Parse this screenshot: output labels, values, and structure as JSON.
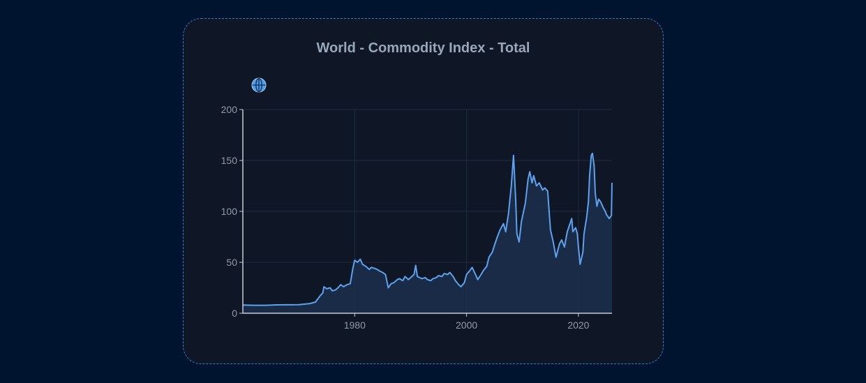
{
  "card": {
    "title": "World - Commodity Index - Total",
    "icon": "globe-icon"
  },
  "chart_data": {
    "type": "area",
    "title": "World - Commodity Index - Total",
    "xlabel": "",
    "ylabel": "",
    "xlim": [
      1960,
      2026
    ],
    "ylim": [
      0,
      200
    ],
    "x_ticks": [
      1980,
      2000,
      2020
    ],
    "y_ticks": [
      0,
      50,
      100,
      150,
      200
    ],
    "grid": true,
    "legend": "none",
    "line_color": "#5ea2ee",
    "fill_color": "#1c2f4d",
    "series": [
      {
        "points": [
          [
            1960,
            8
          ],
          [
            1962,
            7.8
          ],
          [
            1964,
            7.8
          ],
          [
            1966,
            8.2
          ],
          [
            1968,
            8.3
          ],
          [
            1970,
            8.4
          ],
          [
            1972,
            9.5
          ],
          [
            1973,
            11
          ],
          [
            1973.8,
            17
          ],
          [
            1974.3,
            20
          ],
          [
            1974.5,
            26
          ],
          [
            1975,
            24
          ],
          [
            1975.6,
            25
          ],
          [
            1976,
            22
          ],
          [
            1976.6,
            23
          ],
          [
            1977,
            25
          ],
          [
            1977.5,
            28
          ],
          [
            1978,
            26
          ],
          [
            1978.6,
            28
          ],
          [
            1979.2,
            29
          ],
          [
            1979.7,
            45
          ],
          [
            1980,
            52
          ],
          [
            1980.5,
            50
          ],
          [
            1981,
            53
          ],
          [
            1981.4,
            48
          ],
          [
            1982,
            46
          ],
          [
            1982.6,
            43
          ],
          [
            1983,
            45
          ],
          [
            1983.6,
            44
          ],
          [
            1984,
            43
          ],
          [
            1984.6,
            41
          ],
          [
            1985,
            40
          ],
          [
            1985.5,
            38
          ],
          [
            1986,
            25
          ],
          [
            1986.5,
            29
          ],
          [
            1987,
            30
          ],
          [
            1987.6,
            33
          ],
          [
            1988,
            34
          ],
          [
            1988.6,
            32
          ],
          [
            1989,
            36
          ],
          [
            1989.6,
            33
          ],
          [
            1990,
            35
          ],
          [
            1990.6,
            38
          ],
          [
            1990.9,
            47
          ],
          [
            1991.2,
            36
          ],
          [
            1992,
            34
          ],
          [
            1992.6,
            35
          ],
          [
            1993,
            33
          ],
          [
            1993.6,
            32
          ],
          [
            1994,
            34
          ],
          [
            1994.6,
            35
          ],
          [
            1995,
            37
          ],
          [
            1995.6,
            36
          ],
          [
            1996,
            39
          ],
          [
            1996.6,
            38
          ],
          [
            1997,
            40
          ],
          [
            1997.6,
            36
          ],
          [
            1998,
            32
          ],
          [
            1998.6,
            28
          ],
          [
            1999,
            26
          ],
          [
            1999.6,
            30
          ],
          [
            2000,
            38
          ],
          [
            2000.6,
            42
          ],
          [
            2001,
            45
          ],
          [
            2001.6,
            38
          ],
          [
            2002,
            33
          ],
          [
            2002.6,
            38
          ],
          [
            2003,
            42
          ],
          [
            2003.6,
            46
          ],
          [
            2004,
            55
          ],
          [
            2004.6,
            60
          ],
          [
            2005,
            67
          ],
          [
            2005.5,
            75
          ],
          [
            2006,
            82
          ],
          [
            2006.6,
            88
          ],
          [
            2007,
            80
          ],
          [
            2007.5,
            98
          ],
          [
            2008,
            125
          ],
          [
            2008.4,
            155
          ],
          [
            2008.8,
            110
          ],
          [
            2009,
            78
          ],
          [
            2009.4,
            70
          ],
          [
            2009.8,
            90
          ],
          [
            2010,
            95
          ],
          [
            2010.5,
            108
          ],
          [
            2011,
            132
          ],
          [
            2011.3,
            139
          ],
          [
            2011.7,
            128
          ],
          [
            2012,
            135
          ],
          [
            2012.5,
            125
          ],
          [
            2013,
            128
          ],
          [
            2013.6,
            121
          ],
          [
            2014,
            123
          ],
          [
            2014.5,
            120
          ],
          [
            2014.9,
            90
          ],
          [
            2015,
            82
          ],
          [
            2015.5,
            70
          ],
          [
            2016,
            55
          ],
          [
            2016.6,
            68
          ],
          [
            2017,
            72
          ],
          [
            2017.5,
            65
          ],
          [
            2018,
            80
          ],
          [
            2018.5,
            88
          ],
          [
            2018.8,
            93
          ],
          [
            2019,
            80
          ],
          [
            2019.5,
            84
          ],
          [
            2019.8,
            78
          ],
          [
            2020,
            65
          ],
          [
            2020.3,
            48
          ],
          [
            2020.8,
            60
          ],
          [
            2021,
            78
          ],
          [
            2021.5,
            95
          ],
          [
            2021.8,
            110
          ],
          [
            2022,
            135
          ],
          [
            2022.3,
            155
          ],
          [
            2022.5,
            157
          ],
          [
            2022.8,
            145
          ],
          [
            2023,
            118
          ],
          [
            2023.3,
            105
          ],
          [
            2023.6,
            112
          ],
          [
            2024,
            109
          ],
          [
            2024.4,
            104
          ],
          [
            2024.8,
            100
          ],
          [
            2025,
            97
          ],
          [
            2025.5,
            93
          ],
          [
            2025.9,
            96
          ],
          [
            2026,
            128
          ]
        ]
      }
    ]
  }
}
